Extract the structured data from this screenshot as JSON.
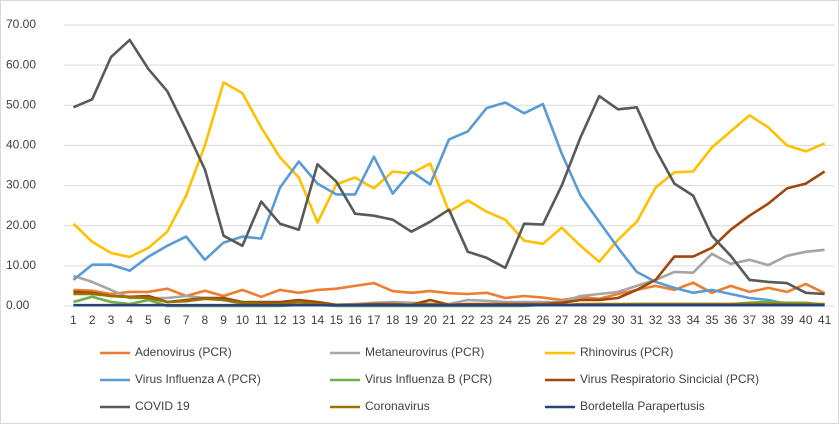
{
  "chart_data": {
    "type": "line",
    "categories": [
      "1",
      "2",
      "3",
      "4",
      "5",
      "6",
      "7",
      "8",
      "9",
      "10",
      "11",
      "12",
      "13",
      "14",
      "15",
      "16",
      "17",
      "18",
      "19",
      "20",
      "21",
      "22",
      "23",
      "24",
      "25",
      "26",
      "27",
      "28",
      "29",
      "30",
      "31",
      "32",
      "33",
      "34",
      "35",
      "36",
      "37",
      "38",
      "39",
      "40",
      "41"
    ],
    "ylim": [
      0,
      70
    ],
    "yticks": [
      {
        "value": 0,
        "label": "0.00"
      },
      {
        "value": 10,
        "label": "10.00"
      },
      {
        "value": 20,
        "label": "20.00"
      },
      {
        "value": 30,
        "label": "30.00"
      },
      {
        "value": 40,
        "label": "40.00"
      },
      {
        "value": 50,
        "label": "50.00"
      },
      {
        "value": 60,
        "label": "60.00"
      },
      {
        "value": 70,
        "label": "70.00"
      }
    ],
    "grid": true,
    "series": [
      {
        "name": "Adenovirus (PCR)",
        "color": "#ED7D31",
        "values": [
          4,
          3.8,
          3,
          3.5,
          3.5,
          4.3,
          2.5,
          3.8,
          2.5,
          4,
          2.3,
          4,
          3.3,
          4,
          4.3,
          5,
          5.7,
          3.7,
          3.3,
          3.7,
          3.2,
          3,
          3.3,
          2,
          2.5,
          2.1,
          1.5,
          2.2,
          1.8,
          3,
          4,
          5,
          4,
          5.8,
          3.3,
          5,
          3.5,
          4.5,
          3.5,
          5.5,
          3.2
        ]
      },
      {
        "name": "Metaneurovirus (PCR)",
        "color": "#A5A5A5",
        "values": [
          7.5,
          6,
          4,
          2,
          2,
          2,
          2.5,
          2,
          1.5,
          0.5,
          0.5,
          0.3,
          0.3,
          0.3,
          0.3,
          0.5,
          0.8,
          1,
          0.8,
          0.5,
          0.5,
          1.5,
          1.3,
          1,
          1,
          1,
          1,
          2.5,
          3,
          3.5,
          5,
          6.5,
          8.5,
          8.3,
          13,
          10.5,
          11.5,
          10.2,
          12.5,
          13.5,
          14
        ]
      },
      {
        "name": "Rhinovirus (PCR)",
        "color": "#FFC000",
        "values": [
          20.5,
          16,
          13.2,
          12.2,
          14.5,
          18.5,
          27.5,
          40,
          55.7,
          53,
          44.5,
          37,
          32,
          20.8,
          30.3,
          32,
          29.3,
          33.5,
          33,
          35.5,
          23.5,
          26.3,
          23.5,
          21.5,
          16.3,
          15.5,
          19.5,
          15,
          11,
          16.5,
          21,
          29.5,
          33.3,
          33.5,
          39.5,
          43.5,
          47.5,
          44.5,
          40,
          38.5,
          40.5
        ]
      },
      {
        "name": "Virus Influenza A (PCR)",
        "color": "#5B9BD5",
        "values": [
          6.5,
          10.3,
          10.3,
          8.8,
          12.3,
          15,
          17.3,
          11.5,
          15.8,
          17.3,
          16.8,
          29.5,
          36,
          30.5,
          27.8,
          27.8,
          37.2,
          28,
          33.5,
          30.3,
          41.5,
          43.5,
          49.3,
          50.7,
          48,
          50.3,
          38,
          27.5,
          21,
          14.5,
          8.5,
          6,
          4.5,
          3.3,
          4,
          3,
          2,
          1.5,
          0.5,
          0.5,
          0.3
        ]
      },
      {
        "name": "Virus Influenza B (PCR)",
        "color": "#70AD47",
        "values": [
          1,
          2.3,
          1,
          0.5,
          1.5,
          0,
          0,
          0,
          0,
          0,
          0,
          0,
          0.3,
          0.3,
          0,
          0,
          0,
          0,
          0,
          0,
          0,
          0,
          0,
          0,
          0,
          0.3,
          0.3,
          0.3,
          0.5,
          0.3,
          0.5,
          0.5,
          0.5,
          0.5,
          0.5,
          0.5,
          0.8,
          1,
          0.8,
          0.8,
          0.3
        ]
      },
      {
        "name": "Virus Respiratorio Sincicial (PCR)",
        "color": "#9E480E",
        "values": [
          3.5,
          3.3,
          2.5,
          2.3,
          2.5,
          1,
          1.5,
          2,
          2,
          1,
          1,
          1,
          1.5,
          1,
          0.3,
          0.3,
          0.5,
          0.5,
          0.3,
          1.5,
          0.3,
          0.5,
          0.5,
          0.5,
          0.5,
          0.5,
          0.8,
          1.5,
          1.5,
          2,
          4,
          6.5,
          12.3,
          12.3,
          14.5,
          19,
          22.5,
          25.5,
          29.3,
          30.5,
          33.5
        ]
      },
      {
        "name": "COVID 19",
        "color": "#595959",
        "values": [
          49.5,
          51.5,
          62,
          66.3,
          59,
          53.5,
          44,
          34,
          17.5,
          15,
          26,
          20.5,
          19,
          35.3,
          31,
          23,
          22.5,
          21.5,
          18.5,
          21,
          24,
          13.5,
          12,
          9.5,
          20.5,
          20.3,
          30,
          42,
          52.3,
          49,
          49.5,
          39,
          30.5,
          27.5,
          17.5,
          12.5,
          6.5,
          6,
          5.7,
          3.3,
          3
        ]
      },
      {
        "name": "Coronavirus",
        "color": "#997300",
        "values": [
          3,
          3,
          2.5,
          2.2,
          2,
          1,
          1.2,
          1.8,
          1.5,
          0.8,
          0.5,
          0.5,
          1,
          0.5,
          0.2,
          0.2,
          0.2,
          0.3,
          0.3,
          0.5,
          0.2,
          0.2,
          0.2,
          0.2,
          0.2,
          0.2,
          0.2,
          0.5,
          0.5,
          0.5,
          0.5,
          0.5,
          0.5,
          0.5,
          0.5,
          0.5,
          0.5,
          0.5,
          0.5,
          0.5,
          0.5
        ]
      },
      {
        "name": "Bordetella Parapertusis",
        "color": "#264478",
        "values": [
          0.2,
          0.2,
          0.2,
          0.2,
          0.2,
          0.2,
          0.2,
          0.2,
          0.2,
          0.2,
          0.2,
          0.2,
          0.2,
          0.2,
          0.2,
          0.2,
          0.2,
          0.2,
          0.2,
          0.2,
          0.2,
          0.2,
          0.2,
          0.2,
          0.2,
          0.2,
          0.2,
          0.2,
          0.2,
          0.2,
          0.2,
          0.2,
          0.2,
          0.2,
          0.2,
          0.2,
          0.2,
          0.2,
          0.2,
          0.2,
          0.2
        ]
      }
    ]
  }
}
